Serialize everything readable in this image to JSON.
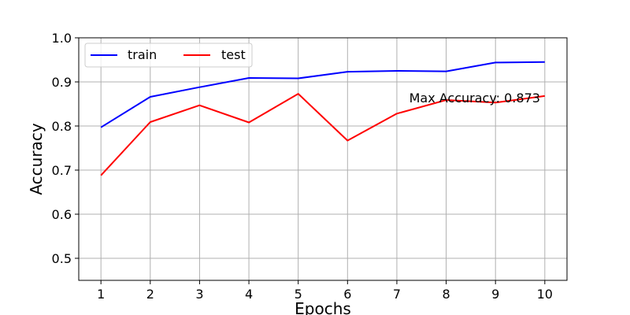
{
  "chart_data": {
    "type": "line",
    "title": "",
    "xlabel": "Epochs",
    "ylabel": "Accuracy",
    "x": [
      1,
      2,
      3,
      4,
      5,
      6,
      7,
      8,
      9,
      10
    ],
    "xlim": [
      0.55,
      10.45
    ],
    "ylim": [
      0.45,
      1.0
    ],
    "yticks": [
      0.5,
      0.6,
      0.7,
      0.8,
      0.9,
      1.0
    ],
    "ytick_labels": [
      "0.5",
      "0.6",
      "0.7",
      "0.8",
      "0.9",
      "1.0"
    ],
    "xtick_labels": [
      "1",
      "2",
      "3",
      "4",
      "5",
      "6",
      "7",
      "8",
      "9",
      "10"
    ],
    "grid": true,
    "legend_position": "top-left",
    "series": [
      {
        "name": "train",
        "color": "#0000ff",
        "values": [
          0.797,
          0.866,
          0.888,
          0.909,
          0.908,
          0.923,
          0.925,
          0.924,
          0.944,
          0.945
        ]
      },
      {
        "name": "test",
        "color": "#ff0000",
        "values": [
          0.688,
          0.809,
          0.847,
          0.808,
          0.873,
          0.767,
          0.828,
          0.859,
          0.853,
          0.868
        ]
      }
    ],
    "annotation": {
      "text": "Max Accuracy: 0.873",
      "x": 7.25,
      "y": 0.83
    }
  }
}
